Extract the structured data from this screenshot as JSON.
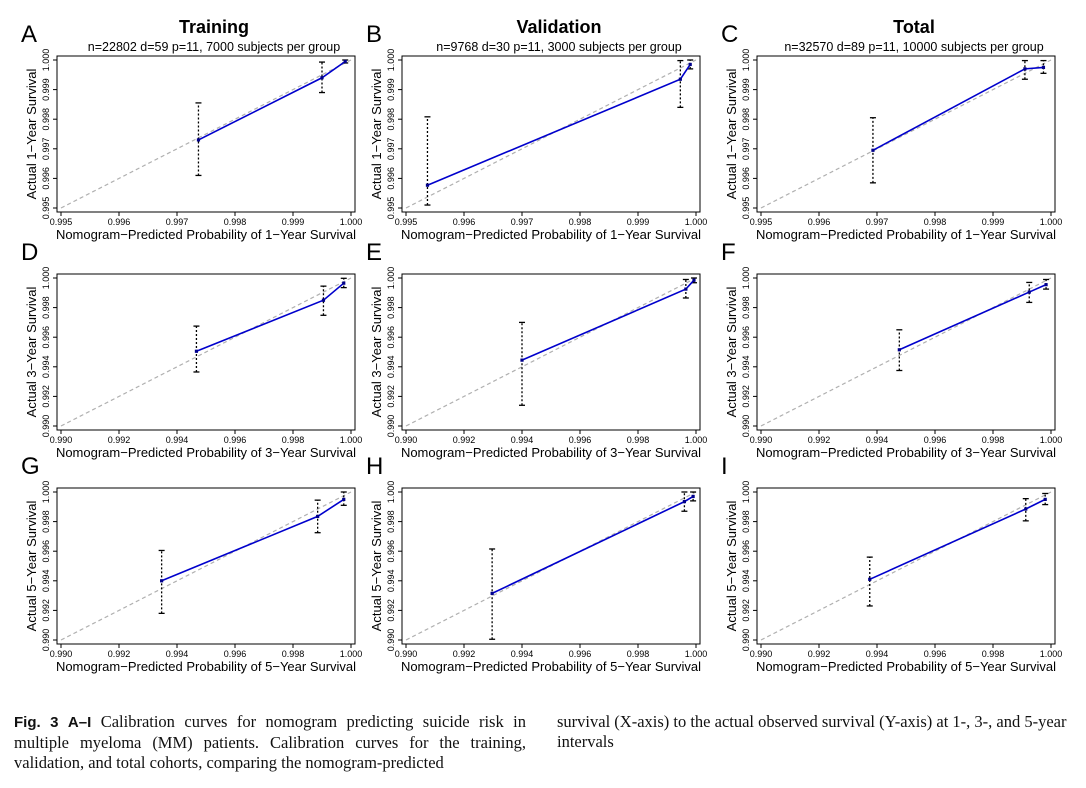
{
  "column_titles": [
    "Training",
    "Validation",
    "Total"
  ],
  "caption": {
    "label": "Fig. 3",
    "label_bold": "A–I",
    "left_text": "Calibration curves for nomogram predicting suicide risk in multiple myeloma (MM) patients. Calibration curves for the training, validation, and total cohorts, comparing the nomogram-predicted",
    "right_text": "survival (X-axis) to the actual observed survival (Y-axis) at 1-, 3-, and 5-year intervals"
  },
  "colors": {
    "curve": "#0000cc",
    "point": "#00008b",
    "ideal": "#b0b0b0",
    "error_bar": "#000000"
  },
  "chart_data": [
    {
      "type": "line",
      "panel": "A",
      "title": "Training",
      "subtitle": "n=22802 d=59 p=11, 7000 subjects per group",
      "xlabel": "Nomogram−Predicted Probability of 1−Year Survival",
      "ylabel": "Actual 1−Year Survival",
      "xlim": [
        0.995,
        1.0
      ],
      "ylim": [
        0.995,
        1.0
      ],
      "xticks": [
        "0.995",
        "0.996",
        "0.997",
        "0.998",
        "0.999",
        "1.000"
      ],
      "yticks": [
        "0.995",
        "0.996",
        "0.997",
        "0.998",
        "0.999",
        "1.000"
      ],
      "points": [
        {
          "x": 0.99737,
          "y": 0.9973,
          "lo": 0.9961,
          "hi": 0.99855
        },
        {
          "x": 0.9995,
          "y": 0.9994,
          "lo": 0.9989,
          "hi": 0.99993
        },
        {
          "x": 0.9999,
          "y": 0.99995,
          "lo": 0.9999,
          "hi": 1.0
        }
      ]
    },
    {
      "type": "line",
      "panel": "B",
      "title": "Validation",
      "subtitle": "n=9768 d=30 p=11, 3000 subjects per group",
      "xlabel": "Nomogram−Predicted Probability of 1−Year Survival",
      "ylabel": "Actual 1−Year Survival",
      "xlim": [
        0.995,
        1.0
      ],
      "ylim": [
        0.995,
        1.0
      ],
      "xticks": [
        "0.995",
        "0.996",
        "0.997",
        "0.998",
        "0.999",
        "1.000"
      ],
      "yticks": [
        "0.995",
        "0.996",
        "0.997",
        "0.998",
        "0.999",
        "1.000"
      ],
      "points": [
        {
          "x": 0.99537,
          "y": 0.99577,
          "lo": 0.9951,
          "hi": 0.99808
        },
        {
          "x": 0.99973,
          "y": 0.99935,
          "lo": 0.9984,
          "hi": 0.99998
        },
        {
          "x": 0.9999,
          "y": 0.99985,
          "lo": 0.9997,
          "hi": 1.0
        }
      ]
    },
    {
      "type": "line",
      "panel": "C",
      "title": "Total",
      "subtitle": "n=32570 d=89 p=11, 10000 subjects per group",
      "xlabel": "Nomogram−Predicted Probability of 1−Year Survival",
      "ylabel": "Actual 1−Year Survival",
      "xlim": [
        0.995,
        1.0
      ],
      "ylim": [
        0.995,
        1.0
      ],
      "xticks": [
        "0.995",
        "0.996",
        "0.997",
        "0.998",
        "0.999",
        "1.000"
      ],
      "yticks": [
        "0.995",
        "0.996",
        "0.997",
        "0.998",
        "0.999",
        "1.000"
      ],
      "points": [
        {
          "x": 0.99693,
          "y": 0.99695,
          "lo": 0.99585,
          "hi": 0.99805
        },
        {
          "x": 0.99955,
          "y": 0.9997,
          "lo": 0.99935,
          "hi": 0.99998
        },
        {
          "x": 0.99987,
          "y": 0.99975,
          "lo": 0.99955,
          "hi": 0.99998
        }
      ]
    },
    {
      "type": "line",
      "panel": "D",
      "title": "",
      "subtitle": "",
      "xlabel": "Nomogram−Predicted Probability of 3−Year Survival",
      "ylabel": "Actual 3−Year Survival",
      "xlim": [
        0.99,
        1.0
      ],
      "ylim": [
        0.99,
        1.0
      ],
      "xticks": [
        "0.990",
        "0.992",
        "0.994",
        "0.996",
        "0.998",
        "1.000"
      ],
      "yticks": [
        "0.990",
        "0.992",
        "0.994",
        "0.996",
        "0.998",
        "1.000"
      ],
      "points": [
        {
          "x": 0.99467,
          "y": 0.99505,
          "lo": 0.99365,
          "hi": 0.99675
        },
        {
          "x": 0.99905,
          "y": 0.9985,
          "lo": 0.99748,
          "hi": 0.99945
        },
        {
          "x": 0.99975,
          "y": 0.99965,
          "lo": 0.99935,
          "hi": 0.99998
        }
      ]
    },
    {
      "type": "line",
      "panel": "E",
      "title": "",
      "subtitle": "",
      "xlabel": "Nomogram−Predicted Probability of 3−Year Survival",
      "ylabel": "Actual 3−Year Survival",
      "xlim": [
        0.99,
        1.0
      ],
      "ylim": [
        0.99,
        1.0
      ],
      "xticks": [
        "0.990",
        "0.992",
        "0.994",
        "0.996",
        "0.998",
        "1.000"
      ],
      "yticks": [
        "0.990",
        "0.992",
        "0.994",
        "0.996",
        "0.998",
        "1.000"
      ],
      "points": [
        {
          "x": 0.994,
          "y": 0.99445,
          "lo": 0.9914,
          "hi": 0.997
        },
        {
          "x": 0.99965,
          "y": 0.99925,
          "lo": 0.99865,
          "hi": 0.9999
        },
        {
          "x": 0.99993,
          "y": 0.99985,
          "lo": 0.99968,
          "hi": 1.0
        }
      ]
    },
    {
      "type": "line",
      "panel": "F",
      "title": "",
      "subtitle": "",
      "xlabel": "Nomogram−Predicted Probability of 3−Year Survival",
      "ylabel": "Actual 3−Year Survival",
      "xlim": [
        0.99,
        1.0
      ],
      "ylim": [
        0.99,
        1.0
      ],
      "xticks": [
        "0.990",
        "0.992",
        "0.994",
        "0.996",
        "0.998",
        "1.000"
      ],
      "yticks": [
        "0.990",
        "0.992",
        "0.994",
        "0.996",
        "0.998",
        "1.000"
      ],
      "points": [
        {
          "x": 0.99477,
          "y": 0.99515,
          "lo": 0.99375,
          "hi": 0.9965
        },
        {
          "x": 0.99925,
          "y": 0.99905,
          "lo": 0.99835,
          "hi": 0.9997
        },
        {
          "x": 0.99983,
          "y": 0.99955,
          "lo": 0.99925,
          "hi": 0.9999
        }
      ]
    },
    {
      "type": "line",
      "panel": "G",
      "title": "",
      "subtitle": "",
      "xlabel": "Nomogram−Predicted Probability of 5−Year Survival",
      "ylabel": "Actual 5−Year Survival",
      "xlim": [
        0.99,
        1.0
      ],
      "ylim": [
        0.99,
        1.0
      ],
      "xticks": [
        "0.990",
        "0.992",
        "0.994",
        "0.996",
        "0.998",
        "1.000"
      ],
      "yticks": [
        "0.990",
        "0.992",
        "0.994",
        "0.996",
        "0.998",
        "1.000"
      ],
      "points": [
        {
          "x": 0.99347,
          "y": 0.994,
          "lo": 0.9918,
          "hi": 0.99605
        },
        {
          "x": 0.99885,
          "y": 0.99835,
          "lo": 0.99725,
          "hi": 0.99945
        },
        {
          "x": 0.99975,
          "y": 0.9995,
          "lo": 0.9991,
          "hi": 1.0
        }
      ]
    },
    {
      "type": "line",
      "panel": "H",
      "title": "",
      "subtitle": "",
      "xlabel": "Nomogram−Predicted Probability of 5−Year Survival",
      "ylabel": "Actual 5−Year Survival",
      "xlim": [
        0.99,
        1.0
      ],
      "ylim": [
        0.99,
        1.0
      ],
      "xticks": [
        "0.990",
        "0.992",
        "0.994",
        "0.996",
        "0.998",
        "1.000"
      ],
      "yticks": [
        "0.990",
        "0.992",
        "0.994",
        "0.996",
        "0.998",
        "1.000"
      ],
      "points": [
        {
          "x": 0.99297,
          "y": 0.99315,
          "lo": 0.99005,
          "hi": 0.99615
        },
        {
          "x": 0.9996,
          "y": 0.99935,
          "lo": 0.9987,
          "hi": 1.0
        },
        {
          "x": 0.9999,
          "y": 0.9997,
          "lo": 0.9994,
          "hi": 1.0
        }
      ]
    },
    {
      "type": "line",
      "panel": "I",
      "title": "",
      "subtitle": "",
      "xlabel": "Nomogram−Predicted Probability of 5−Year Survival",
      "ylabel": "Actual 5−Year Survival",
      "xlim": [
        0.99,
        1.0
      ],
      "ylim": [
        0.99,
        1.0
      ],
      "xticks": [
        "0.990",
        "0.992",
        "0.994",
        "0.996",
        "0.998",
        "1.000"
      ],
      "yticks": [
        "0.990",
        "0.992",
        "0.994",
        "0.996",
        "0.998",
        "1.000"
      ],
      "points": [
        {
          "x": 0.99375,
          "y": 0.9941,
          "lo": 0.9923,
          "hi": 0.9956
        },
        {
          "x": 0.99913,
          "y": 0.99885,
          "lo": 0.99805,
          "hi": 0.99955
        },
        {
          "x": 0.9998,
          "y": 0.9995,
          "lo": 0.99915,
          "hi": 0.9999
        }
      ]
    }
  ]
}
